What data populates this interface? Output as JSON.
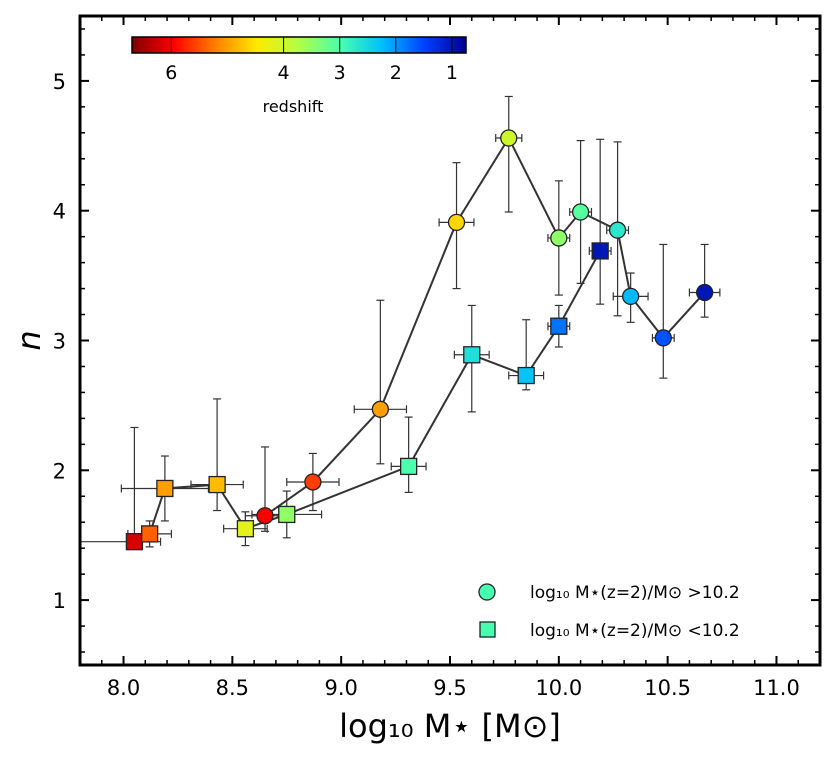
{
  "chart_data": {
    "type": "scatter",
    "xlabel": "log₁₀ M⋆ [M⊙]",
    "ylabel": "n",
    "xlim": [
      7.8,
      11.2
    ],
    "ylim": [
      0.5,
      5.5
    ],
    "xticks": [
      "8.0",
      "8.5",
      "9.0",
      "9.5",
      "10.0",
      "10.5",
      "11.0"
    ],
    "yticks": [
      "1",
      "2",
      "3",
      "4",
      "5"
    ],
    "colorbar": {
      "title": "redshift",
      "ticks": [
        "6",
        "4",
        "3",
        "2",
        "1"
      ],
      "tick_values": [
        6,
        4,
        3,
        2,
        1
      ],
      "range": [
        6.7,
        0.75
      ],
      "colors": [
        "#7f0000",
        "#ff0000",
        "#ff8000",
        "#ffea00",
        "#b0ff47",
        "#47ffb0",
        "#00bfff",
        "#0040ff",
        "#00008f"
      ]
    },
    "series": [
      {
        "name": "log₁₀ M⋆(z=2)/M⊙ >10.2",
        "marker": "circle",
        "points": [
          {
            "x": 8.65,
            "y": 1.65,
            "z": 6.0,
            "xerr": [
              0.09,
              0.09
            ],
            "yerr": [
              0.12,
              0.53
            ]
          },
          {
            "x": 8.87,
            "y": 1.91,
            "z": 5.6,
            "xerr": [
              0.12,
              0.12
            ],
            "yerr": [
              0.22,
              0.22
            ]
          },
          {
            "x": 9.18,
            "y": 2.47,
            "z": 5.0,
            "xerr": [
              0.12,
              0.12
            ],
            "yerr": [
              0.42,
              0.84
            ]
          },
          {
            "x": 9.53,
            "y": 3.91,
            "z": 4.6,
            "xerr": [
              0.08,
              0.08
            ],
            "yerr": [
              0.51,
              0.46
            ]
          },
          {
            "x": 9.77,
            "y": 4.56,
            "z": 4.0,
            "xerr": [
              0.06,
              0.06
            ],
            "yerr": [
              0.57,
              0.32
            ]
          },
          {
            "x": 10.0,
            "y": 3.79,
            "z": 3.5,
            "xerr": [
              0.05,
              0.05
            ],
            "yerr": [
              0.44,
              0.44
            ]
          },
          {
            "x": 10.1,
            "y": 3.99,
            "z": 3.1,
            "xerr": [
              0.05,
              0.05
            ],
            "yerr": [
              0.55,
              0.55
            ]
          },
          {
            "x": 10.27,
            "y": 3.85,
            "z": 2.7,
            "xerr": [
              0.05,
              0.05
            ],
            "yerr": [
              0.66,
              0.68
            ]
          },
          {
            "x": 10.33,
            "y": 3.34,
            "z": 2.2,
            "xerr": [
              0.08,
              0.08
            ],
            "yerr": [
              0.2,
              0.18
            ]
          },
          {
            "x": 10.48,
            "y": 3.02,
            "z": 1.6,
            "xerr": [
              0.05,
              0.05
            ],
            "yerr": [
              0.31,
              0.72
            ]
          },
          {
            "x": 10.67,
            "y": 3.37,
            "z": 1.0,
            "xerr": [
              0.07,
              0.07
            ],
            "yerr": [
              0.19,
              0.37
            ]
          }
        ]
      },
      {
        "name": "log₁₀ M⋆(z=2)/M⊙ <10.2",
        "marker": "square",
        "points": [
          {
            "x": 8.05,
            "y": 1.45,
            "z": 6.2,
            "xerr": [
              0.25,
              0.12
            ],
            "yerr": [
              0.05,
              0.88
            ]
          },
          {
            "x": 8.12,
            "y": 1.51,
            "z": 5.4,
            "xerr": [
              0.1,
              0.1
            ],
            "yerr": [
              0.1,
              0.1
            ]
          },
          {
            "x": 8.19,
            "y": 1.86,
            "z": 5.0,
            "xerr": [
              0.2,
              0.2
            ],
            "yerr": [
              0.25,
              0.25
            ]
          },
          {
            "x": 8.43,
            "y": 1.89,
            "z": 4.8,
            "xerr": [
              0.12,
              0.12
            ],
            "yerr": [
              0.2,
              0.66
            ]
          },
          {
            "x": 8.56,
            "y": 1.55,
            "z": 4.2,
            "xerr": [
              0.1,
              0.1
            ],
            "yerr": [
              0.13,
              0.13
            ]
          },
          {
            "x": 8.75,
            "y": 1.66,
            "z": 3.5,
            "xerr": [
              0.16,
              0.16
            ],
            "yerr": [
              0.18,
              0.18
            ]
          },
          {
            "x": 9.31,
            "y": 2.03,
            "z": 3.0,
            "xerr": [
              0.08,
              0.08
            ],
            "yerr": [
              0.2,
              0.38
            ]
          },
          {
            "x": 9.6,
            "y": 2.89,
            "z": 2.6,
            "xerr": [
              0.08,
              0.08
            ],
            "yerr": [
              0.44,
              0.38
            ]
          },
          {
            "x": 9.85,
            "y": 2.73,
            "z": 2.3,
            "xerr": [
              0.08,
              0.08
            ],
            "yerr": [
              0.11,
              0.43
            ]
          },
          {
            "x": 10.0,
            "y": 3.11,
            "z": 1.8,
            "xerr": [
              0.05,
              0.05
            ],
            "yerr": [
              0.16,
              0.16
            ]
          },
          {
            "x": 10.19,
            "y": 3.69,
            "z": 1.0,
            "xerr": [
              0.05,
              0.05
            ],
            "yerr": [
              0.41,
              0.86
            ]
          }
        ]
      }
    ]
  }
}
